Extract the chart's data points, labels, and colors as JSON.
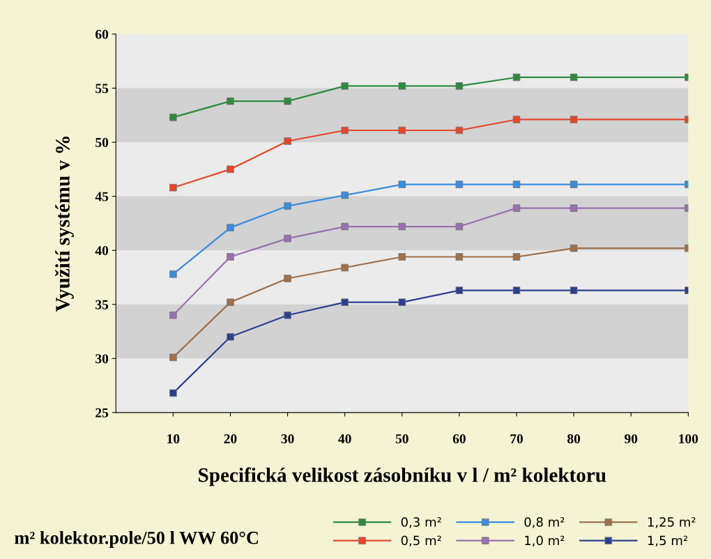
{
  "chart_data": {
    "type": "line",
    "xlabel": "Specifická velikost zásobníku v l / m² kolektoru",
    "ylabel": "Využití systému v %",
    "x": [
      10,
      20,
      30,
      40,
      50,
      60,
      70,
      80,
      100
    ],
    "series": [
      {
        "name": "0,3 m²",
        "color": "#2e8b3e",
        "values": [
          52.3,
          53.8,
          53.8,
          55.2,
          55.2,
          55.2,
          56.0,
          56.0,
          56.0
        ]
      },
      {
        "name": "0,5 m²",
        "color": "#e8452a",
        "values": [
          45.8,
          47.5,
          50.1,
          51.1,
          51.1,
          51.1,
          52.1,
          52.1,
          52.1
        ]
      },
      {
        "name": "0,8 m²",
        "color": "#3a8de0",
        "values": [
          37.8,
          42.1,
          44.1,
          45.1,
          46.1,
          46.1,
          46.1,
          46.1,
          46.1
        ]
      },
      {
        "name": "1,0 m²",
        "color": "#9a6fb0",
        "values": [
          34.0,
          39.4,
          41.1,
          42.2,
          42.2,
          42.2,
          43.9,
          43.9,
          43.9
        ]
      },
      {
        "name": "1,25 m²",
        "color": "#a0704a",
        "values": [
          30.1,
          35.2,
          37.4,
          38.4,
          39.4,
          39.4,
          39.4,
          40.2,
          40.2
        ]
      },
      {
        "name": "1,5 m²",
        "color": "#2a3f8f",
        "values": [
          26.8,
          32.0,
          34.0,
          35.2,
          35.2,
          36.3,
          36.3,
          36.3,
          36.3
        ]
      }
    ],
    "xlim": [
      0,
      100
    ],
    "xticks": [
      10,
      20,
      30,
      40,
      50,
      60,
      70,
      80,
      90,
      100
    ],
    "ylim": [
      25,
      60
    ],
    "yticks": [
      25,
      30,
      35,
      40,
      45,
      50,
      55,
      60
    ],
    "bands": [
      {
        "axis": "y",
        "from": 30,
        "to": 35,
        "color": "#d2d2d2"
      },
      {
        "axis": "y",
        "from": 40,
        "to": 45,
        "color": "#d2d2d2"
      },
      {
        "axis": "y",
        "from": 50,
        "to": 55,
        "color": "#d2d2d2"
      }
    ],
    "annotations": [
      "m² kolektor.pole/50 l WW 60°C"
    ],
    "marker": "square",
    "line_style": "solid",
    "grid": false,
    "legend": "bottom"
  }
}
